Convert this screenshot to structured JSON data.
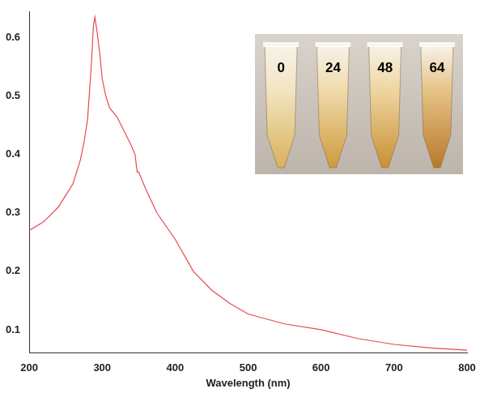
{
  "chart_data": {
    "type": "line",
    "x_label": "Wavelength (nm)",
    "x": [
      200,
      220,
      240,
      250,
      260,
      270,
      275,
      280,
      285,
      288,
      290,
      293,
      297,
      300,
      305,
      310,
      320,
      330,
      340,
      345,
      348,
      350,
      360,
      375,
      400,
      425,
      450,
      475,
      500,
      550,
      600,
      650,
      700,
      750,
      800
    ],
    "values": [
      0.27,
      0.285,
      0.31,
      0.33,
      0.35,
      0.39,
      0.42,
      0.46,
      0.55,
      0.62,
      0.635,
      0.61,
      0.57,
      0.53,
      0.5,
      0.48,
      0.465,
      0.44,
      0.415,
      0.4,
      0.37,
      0.37,
      0.34,
      0.3,
      0.255,
      0.2,
      0.168,
      0.145,
      0.127,
      0.11,
      0.1,
      0.085,
      0.075,
      0.069,
      0.065
    ],
    "color": "#e8474f",
    "xlim": [
      200,
      800
    ],
    "xticks": [
      200,
      300,
      400,
      500,
      600,
      700,
      800
    ],
    "ylim": [
      0.06,
      0.645
    ],
    "yticks": [
      0.1,
      0.2,
      0.3,
      0.4,
      0.5,
      0.6
    ],
    "grid": false,
    "annotations": [
      "0",
      "24",
      "48",
      "64"
    ]
  }
}
